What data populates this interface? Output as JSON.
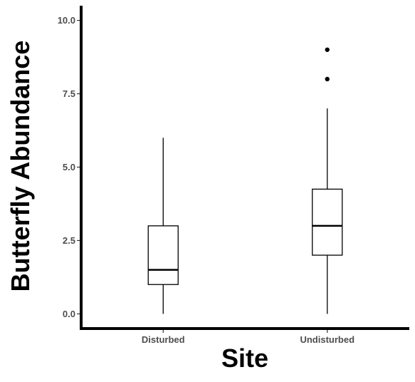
{
  "chart_data": {
    "type": "box",
    "title": "",
    "xlabel": "Site",
    "ylabel": "Butterfly Abundance",
    "ylim": [
      -0.5,
      10.5
    ],
    "yticks": [
      "0.0",
      "2.5",
      "5.0",
      "7.5",
      "10.0"
    ],
    "ytick_values": [
      0,
      2.5,
      5,
      7.5,
      10
    ],
    "categories": [
      "Disturbed",
      "Undisturbed"
    ],
    "grid": false,
    "legend": "none",
    "boxes": [
      {
        "category": "Disturbed",
        "whisker_low": 0,
        "q1": 1,
        "median": 1.5,
        "q3": 3,
        "whisker_high": 6,
        "outliers": []
      },
      {
        "category": "Undisturbed",
        "whisker_low": 0,
        "q1": 2,
        "median": 3,
        "q3": 4.25,
        "whisker_high": 7,
        "outliers": [
          8,
          9
        ]
      }
    ],
    "colors": {
      "box_fill": "#ffffff",
      "line": "#000000",
      "tick_label": "#4d4d4d"
    }
  }
}
